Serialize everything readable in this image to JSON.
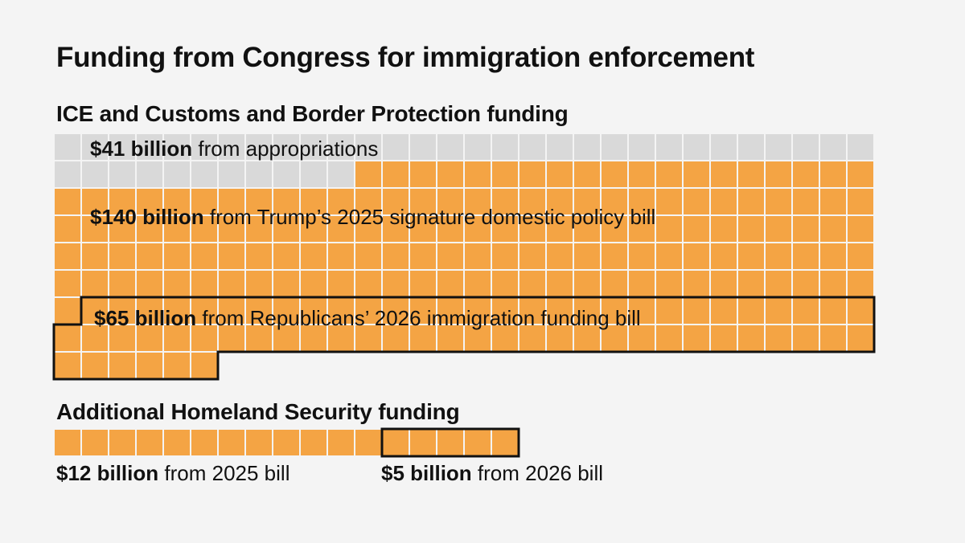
{
  "title": "Funding from Congress for immigration enforcement",
  "chart_data": [
    {
      "type": "waffle",
      "title": "ICE and Customs and Border Protection funding",
      "unit_billion_per_square": 1,
      "squares_per_row": 30,
      "segments": [
        {
          "amount": "$41 billion",
          "text": "from appropriations",
          "value": 41,
          "color": "#d9d9d9",
          "outlined": false
        },
        {
          "amount": "$140 billion",
          "text": "from Trump’s 2025 signature domestic policy bill",
          "value": 140,
          "color": "#f4a444",
          "outlined": false
        },
        {
          "amount": "$65 billion",
          "text": "from Republicans’ 2026 immigration funding bill",
          "value": 65,
          "color": "#f4a444",
          "outlined": true
        }
      ]
    },
    {
      "type": "waffle",
      "title": "Additional Homeland Security funding",
      "unit_billion_per_square": 1,
      "segments": [
        {
          "amount": "$12 billion",
          "text": "from 2025 bill",
          "value": 12,
          "color": "#f4a444",
          "outlined": false
        },
        {
          "amount": "$5 billion",
          "text": "from 2026 bill",
          "value": 5,
          "color": "#f4a444",
          "outlined": true
        }
      ]
    }
  ]
}
